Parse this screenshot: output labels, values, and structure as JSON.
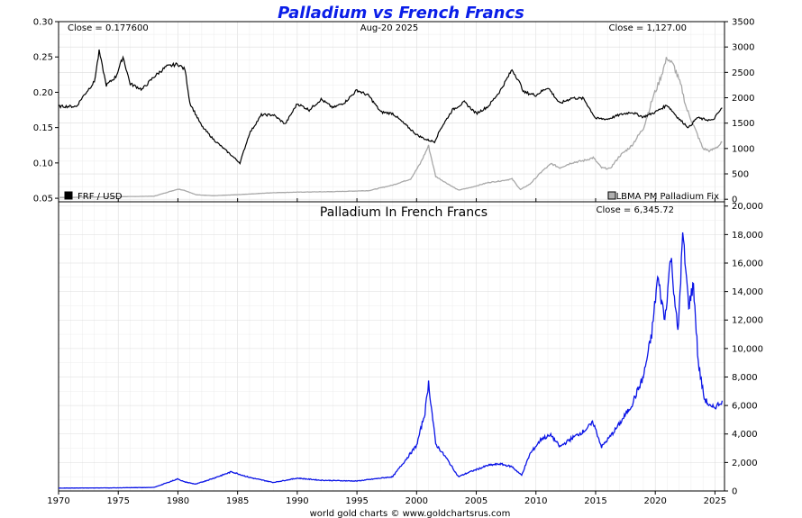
{
  "page": {
    "title": "Palladium vs French Francs",
    "footer": "world gold charts © www.goldchartsrus.com",
    "date": "Aug-20  2025"
  },
  "colors": {
    "title": "#0a1ee8",
    "frf_series": "#000000",
    "palladium_series": "#a8a8a8",
    "palladium_frf_series": "#0a14e6",
    "grid": "#dcdcdc"
  },
  "chart_data": [
    {
      "type": "line",
      "panel": "top",
      "close_left": "Close = 0.177600",
      "close_right": "Close = 1,127.00",
      "legend": [
        {
          "name": "FRF / USD",
          "placement": "bottom-left"
        },
        {
          "name": "LBMA PM Palladium Fix",
          "placement": "bottom-right"
        }
      ],
      "x_ticks": [
        "1970",
        "1975",
        "1980",
        "1985",
        "1990",
        "1995",
        "2000",
        "2005",
        "2010",
        "2015",
        "2020",
        "2025"
      ],
      "left_axis": {
        "ticks": [
          "0.30",
          "0.25",
          "0.20",
          "0.15",
          "0.10",
          "0.05"
        ],
        "ylim": [
          0.045,
          0.3
        ]
      },
      "right_axis": {
        "ticks": [
          "3500",
          "3000",
          "2500",
          "2000",
          "1500",
          "1000",
          "500",
          "0"
        ],
        "ylim": [
          -50,
          3500
        ]
      },
      "series": [
        {
          "name": "FRF / USD",
          "axis": "left",
          "x": [
            1970.0,
            1971.5,
            1972.0,
            1973.0,
            1973.4,
            1974.0,
            1974.8,
            1975.4,
            1976.0,
            1977.0,
            1978.0,
            1979.0,
            1980.0,
            1980.6,
            1981.0,
            1982.0,
            1983.0,
            1984.0,
            1985.2,
            1986.0,
            1987.0,
            1988.0,
            1989.0,
            1990.0,
            1991.0,
            1992.0,
            1993.0,
            1994.0,
            1995.0,
            1996.0,
            1997.0,
            1998.0,
            1999.0,
            2000.0,
            2000.8,
            2001.5,
            2002.0,
            2003.0,
            2004.0,
            2005.0,
            2006.0,
            2007.0,
            2008.0,
            2008.5,
            2009.0,
            2010.0,
            2011.0,
            2012.0,
            2013.0,
            2014.0,
            2015.0,
            2016.0,
            2017.0,
            2018.0,
            2019.0,
            2020.0,
            2021.0,
            2022.0,
            2022.8,
            2023.5,
            2024.0,
            2024.8,
            2025.6
          ],
          "values": [
            0.18,
            0.18,
            0.193,
            0.215,
            0.258,
            0.21,
            0.222,
            0.25,
            0.212,
            0.204,
            0.222,
            0.236,
            0.24,
            0.232,
            0.185,
            0.152,
            0.133,
            0.118,
            0.1,
            0.142,
            0.168,
            0.168,
            0.155,
            0.184,
            0.175,
            0.19,
            0.178,
            0.186,
            0.203,
            0.195,
            0.172,
            0.17,
            0.155,
            0.14,
            0.133,
            0.13,
            0.148,
            0.175,
            0.186,
            0.17,
            0.18,
            0.202,
            0.232,
            0.218,
            0.2,
            0.196,
            0.207,
            0.184,
            0.192,
            0.191,
            0.163,
            0.162,
            0.168,
            0.172,
            0.165,
            0.172,
            0.182,
            0.162,
            0.15,
            0.164,
            0.162,
            0.16,
            0.178
          ]
        },
        {
          "name": "LBMA PM Palladium Fix",
          "axis": "right",
          "x": [
            1970.0,
            1972.0,
            1975.0,
            1978.0,
            1980.0,
            1980.5,
            1981.5,
            1983.0,
            1985.0,
            1988.0,
            1990.0,
            1993.0,
            1996.0,
            1998.0,
            1999.5,
            2000.3,
            2001.0,
            2001.6,
            2002.5,
            2003.5,
            2004.5,
            2006.0,
            2007.0,
            2008.0,
            2008.7,
            2009.5,
            2010.5,
            2011.3,
            2012.0,
            2013.0,
            2014.0,
            2014.8,
            2015.5,
            2016.2,
            2017.0,
            2018.0,
            2019.0,
            2019.8,
            2020.3,
            2021.0,
            2021.6,
            2022.2,
            2022.6,
            2023.3,
            2024.0,
            2024.6,
            2025.3,
            2025.6
          ],
          "values": [
            35,
            40,
            50,
            60,
            200,
            180,
            90,
            70,
            90,
            130,
            140,
            150,
            170,
            280,
            400,
            700,
            1050,
            450,
            320,
            180,
            230,
            330,
            360,
            400,
            190,
            300,
            550,
            700,
            620,
            720,
            760,
            820,
            620,
            600,
            850,
            1050,
            1400,
            2000,
            2300,
            2800,
            2600,
            2200,
            1800,
            1400,
            1000,
            950,
            1050,
            1127
          ]
        }
      ]
    },
    {
      "type": "line",
      "panel": "bottom",
      "title": "Palladium In French Francs",
      "close_right": "Close = 6,345.72",
      "x_ticks": [
        "1970",
        "1975",
        "1980",
        "1985",
        "1990",
        "1995",
        "2000",
        "2005",
        "2010",
        "2015",
        "2020",
        "2025"
      ],
      "right_axis": {
        "ticks": [
          "20,000",
          "18,000",
          "16,000",
          "14,000",
          "12,000",
          "10,000",
          "8,000",
          "6,000",
          "4,000",
          "2,000",
          "0"
        ],
        "ylim": [
          0,
          20300
        ]
      },
      "series": [
        {
          "name": "Palladium In French Francs",
          "x": [
            1970.0,
            1972.0,
            1975.0,
            1978.0,
            1980.0,
            1980.5,
            1981.5,
            1983.0,
            1984.5,
            1986.0,
            1988.0,
            1990.0,
            1992.0,
            1995.0,
            1998.0,
            2000.0,
            2000.7,
            2001.0,
            2001.6,
            2002.5,
            2003.5,
            2004.5,
            2006.0,
            2007.0,
            2008.0,
            2008.8,
            2009.5,
            2010.5,
            2011.3,
            2012.0,
            2013.0,
            2014.0,
            2014.8,
            2015.5,
            2016.2,
            2017.0,
            2018.0,
            2019.0,
            2019.7,
            2020.2,
            2020.8,
            2021.3,
            2021.9,
            2022.3,
            2022.8,
            2023.2,
            2023.6,
            2024.1,
            2024.7,
            2025.2,
            2025.6
          ],
          "values": [
            200,
            210,
            220,
            250,
            850,
            650,
            480,
            900,
            1350,
            950,
            600,
            900,
            750,
            700,
            1000,
            3200,
            5500,
            7600,
            3300,
            2300,
            1000,
            1350,
            1800,
            1900,
            1700,
            1100,
            2600,
            3700,
            3900,
            3100,
            3700,
            4200,
            4800,
            3100,
            3800,
            4700,
            6000,
            8000,
            11000,
            15000,
            12000,
            16500,
            11000,
            18000,
            13000,
            14500,
            9000,
            6500,
            5800,
            6000,
            6346
          ]
        }
      ]
    }
  ]
}
